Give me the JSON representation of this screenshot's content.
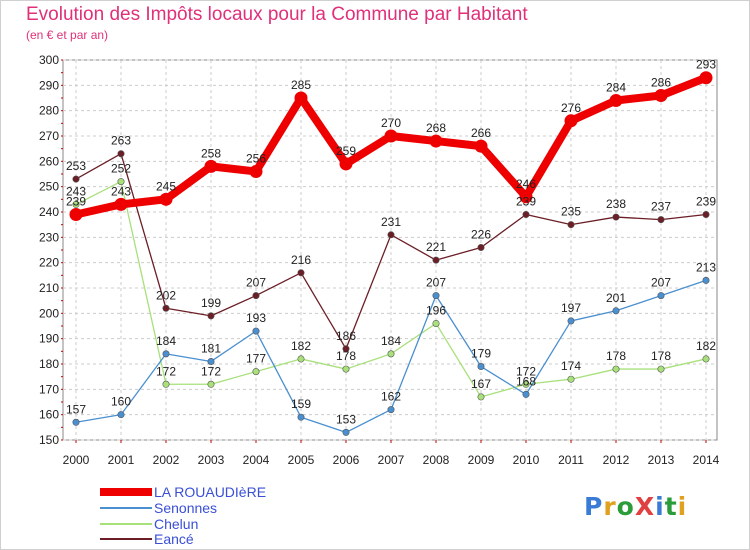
{
  "header": {
    "title": "Evolution des Impôts locaux pour la Commune par Habitant",
    "subtitle": "(en € et par an)"
  },
  "logo": {
    "text": "ProXiti"
  },
  "chart_data": {
    "type": "line",
    "title": "Evolution des Impôts locaux pour la Commune par Habitant",
    "subtitle": "(en € et par an)",
    "xlabel": "",
    "ylabel": "",
    "x": [
      "2000",
      "2001",
      "2002",
      "2003",
      "2004",
      "2005",
      "2006",
      "2007",
      "2008",
      "2009",
      "2010",
      "2011",
      "2012",
      "2013",
      "2014"
    ],
    "ylim": [
      150,
      300
    ],
    "yticks": [
      150,
      160,
      170,
      180,
      190,
      200,
      210,
      220,
      230,
      240,
      250,
      260,
      270,
      280,
      290,
      300
    ],
    "grid": true,
    "legend_position": "bottom-left",
    "series": [
      {
        "name": "Eancé",
        "color": "#6b1e26",
        "values": [
          253,
          263,
          202,
          199,
          207,
          216,
          186,
          231,
          221,
          226,
          239,
          235,
          238,
          237,
          239
        ],
        "labels": [
          "253",
          "263",
          "202",
          "199",
          "207",
          "216",
          "186",
          "231",
          "221",
          "226",
          "239",
          "235",
          "238",
          "237",
          "239"
        ]
      },
      {
        "name": "Chelun",
        "color": "#a8e07a",
        "values": [
          243,
          252,
          172,
          172,
          177,
          182,
          178,
          184,
          196,
          167,
          172,
          174,
          178,
          178,
          182
        ],
        "labels": [
          "243",
          "252",
          "172",
          "172",
          "177",
          "182",
          "178",
          "184",
          "196",
          "167",
          "172",
          "174",
          "178",
          "178",
          "182"
        ]
      },
      {
        "name": "Senonnes",
        "color": "#4a8fd0",
        "values": [
          157,
          160,
          184,
          181,
          193,
          159,
          153,
          162,
          207,
          179,
          168,
          197,
          201,
          207,
          213
        ],
        "labels": [
          "157",
          "160",
          "184",
          "181",
          "193",
          "159",
          "153",
          "162",
          "207",
          "179",
          "168",
          "197",
          "201",
          "207",
          "213"
        ]
      },
      {
        "name": "LA ROUAUDIèRE",
        "color": "#ee0000",
        "values": [
          239,
          243,
          245,
          258,
          256,
          285,
          259,
          270,
          268,
          266,
          246,
          276,
          284,
          286,
          293
        ],
        "labels": [
          "239",
          "243",
          "245",
          "258",
          "256",
          "285",
          "259",
          "270",
          "268",
          "266",
          "246",
          "276",
          "284",
          "286",
          "293"
        ]
      }
    ]
  }
}
